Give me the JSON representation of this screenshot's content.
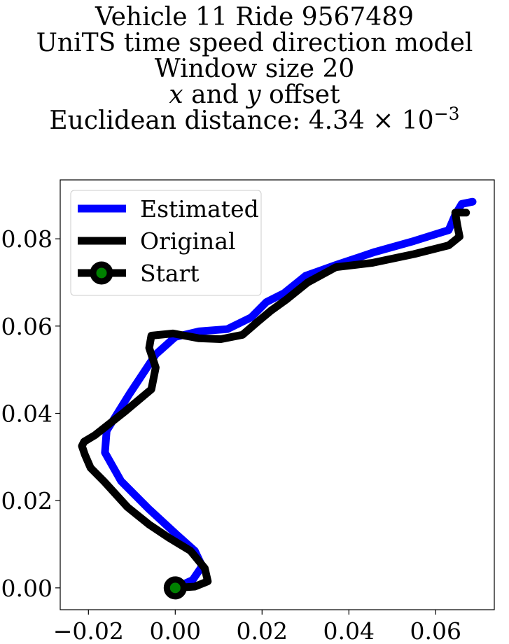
{
  "chart_data": {
    "type": "line",
    "title_lines": [
      "Vehicle 11 Ride 9567489",
      "UniTS time speed direction model",
      "Window size 20"
    ],
    "title_offset": {
      "x_var": "x",
      "mid": " and ",
      "y_var": "y",
      "suffix": " offset"
    },
    "title_distance": {
      "prefix": "Euclidean distance: 4.34 × 10",
      "exponent": "−3"
    },
    "xlabel": "",
    "ylabel": "",
    "xlim": [
      -0.0265,
      0.0735
    ],
    "ylim": [
      -0.005,
      0.0935
    ],
    "x_ticks": [
      -0.02,
      0.0,
      0.02,
      0.04,
      0.06
    ],
    "x_tick_labels": [
      "−0.02",
      "0.00",
      "0.02",
      "0.04",
      "0.06"
    ],
    "y_ticks": [
      0.0,
      0.02,
      0.04,
      0.06,
      0.08
    ],
    "y_tick_labels": [
      "0.00",
      "0.02",
      "0.04",
      "0.06",
      "0.08"
    ],
    "grid": false,
    "legend_position": "upper-left",
    "series": [
      {
        "name": "Estimated",
        "color": "#0000ff",
        "x": [
          0.0,
          0.004,
          0.0062,
          0.0045,
          0.0,
          -0.006,
          -0.0125,
          -0.0162,
          -0.0158,
          -0.0105,
          -0.0045,
          0.0,
          0.0055,
          0.012,
          0.0175,
          0.021,
          0.025,
          0.03,
          0.037,
          0.046,
          0.055,
          0.063,
          0.0645,
          0.066,
          0.0685
        ],
        "y": [
          0.0,
          0.0018,
          0.005,
          0.0085,
          0.0125,
          0.018,
          0.0245,
          0.031,
          0.036,
          0.0445,
          0.0535,
          0.0575,
          0.0588,
          0.0593,
          0.062,
          0.0655,
          0.0675,
          0.0715,
          0.074,
          0.077,
          0.0795,
          0.082,
          0.0855,
          0.088,
          0.0885
        ]
      },
      {
        "name": "Original",
        "color": "#000000",
        "x": [
          0.0,
          0.0045,
          0.0075,
          0.0068,
          0.0035,
          -0.0015,
          -0.006,
          -0.011,
          -0.0165,
          -0.0195,
          -0.0208,
          -0.0215,
          -0.021,
          -0.0185,
          -0.0115,
          -0.0055,
          -0.0045,
          -0.006,
          -0.0055,
          -0.0005,
          0.0055,
          0.0105,
          0.0155,
          0.019,
          0.022,
          0.0255,
          0.0305,
          0.037,
          0.0455,
          0.055,
          0.063,
          0.0655,
          0.065,
          0.0645,
          0.067
        ],
        "y": [
          0.0,
          0.0003,
          0.0015,
          0.0045,
          0.0085,
          0.0115,
          0.0145,
          0.0185,
          0.0245,
          0.0275,
          0.0305,
          0.0325,
          0.0335,
          0.035,
          0.0405,
          0.0455,
          0.0505,
          0.055,
          0.0578,
          0.0583,
          0.0572,
          0.057,
          0.058,
          0.061,
          0.0635,
          0.066,
          0.07,
          0.0735,
          0.0745,
          0.0765,
          0.0785,
          0.0805,
          0.083,
          0.086,
          0.086
        ]
      }
    ],
    "start_marker": {
      "name": "Start",
      "x": 0.0,
      "y": 0.0,
      "fill": "#008000",
      "edge": "#000000"
    }
  }
}
